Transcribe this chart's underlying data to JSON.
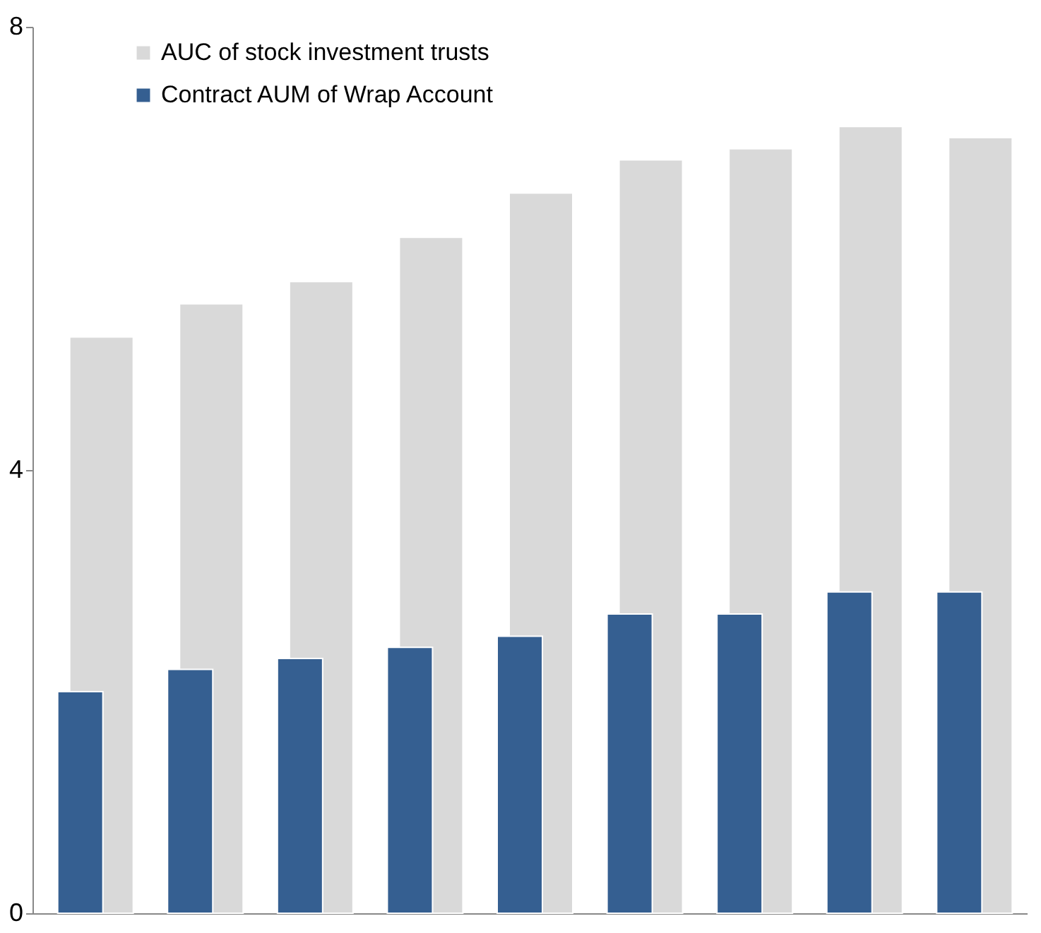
{
  "chart_data": {
    "type": "bar",
    "categories": [
      null,
      null,
      null,
      null,
      null,
      null,
      null,
      null,
      null
    ],
    "series": [
      {
        "name": "AUC of stock investment trusts",
        "color": "#d9d9d9",
        "values": [
          5.2,
          5.5,
          5.7,
          6.1,
          6.5,
          6.8,
          6.9,
          7.1,
          7.0
        ]
      },
      {
        "name": "Contract AUM of Wrap Account",
        "color": "#355f91",
        "values": [
          2.0,
          2.2,
          2.3,
          2.4,
          2.5,
          2.7,
          2.7,
          2.9,
          2.9
        ]
      }
    ],
    "ylim": [
      0,
      8
    ],
    "yticks": [
      0,
      4,
      8
    ],
    "grid": false,
    "legend": "top left",
    "tick_labels": "y"
  }
}
